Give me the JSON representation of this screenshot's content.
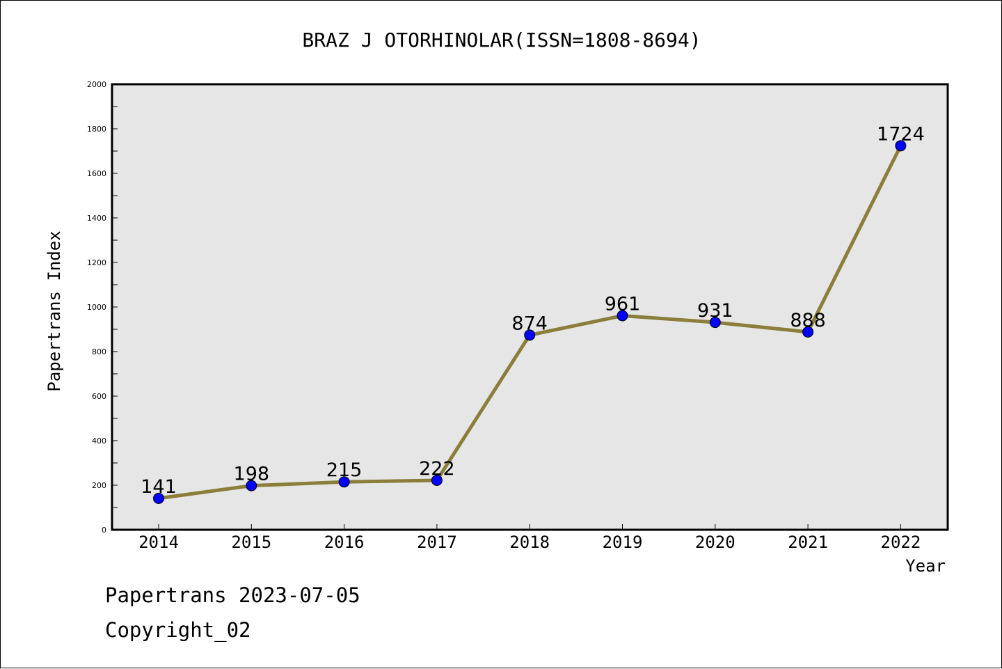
{
  "chart_data": {
    "type": "line",
    "title": "BRAZ J OTORHINOLAR(ISSN=1808-8694)",
    "xlabel": "Year",
    "ylabel": "Papertrans Index",
    "categories": [
      "2014",
      "2015",
      "2016",
      "2017",
      "2018",
      "2019",
      "2020",
      "2021",
      "2022"
    ],
    "values": [
      141,
      198,
      215,
      222,
      874,
      961,
      931,
      888,
      1724
    ],
    "data_labels": [
      "141",
      "198",
      "215",
      "222",
      "874",
      "961",
      "931",
      "888",
      "1724"
    ],
    "ylim": [
      0,
      2000
    ],
    "y_ticks": [
      "0",
      "200",
      "400",
      "600",
      "800",
      "1000",
      "1200",
      "1400",
      "1600",
      "1800",
      "2000"
    ],
    "grid": false,
    "plot_background": "#e6e6e6",
    "line_color": "#8b7d3a",
    "marker_color": "#0000ff"
  },
  "footer": {
    "line1": "Papertrans 2023-07-05",
    "line2": "Copyright_02"
  }
}
